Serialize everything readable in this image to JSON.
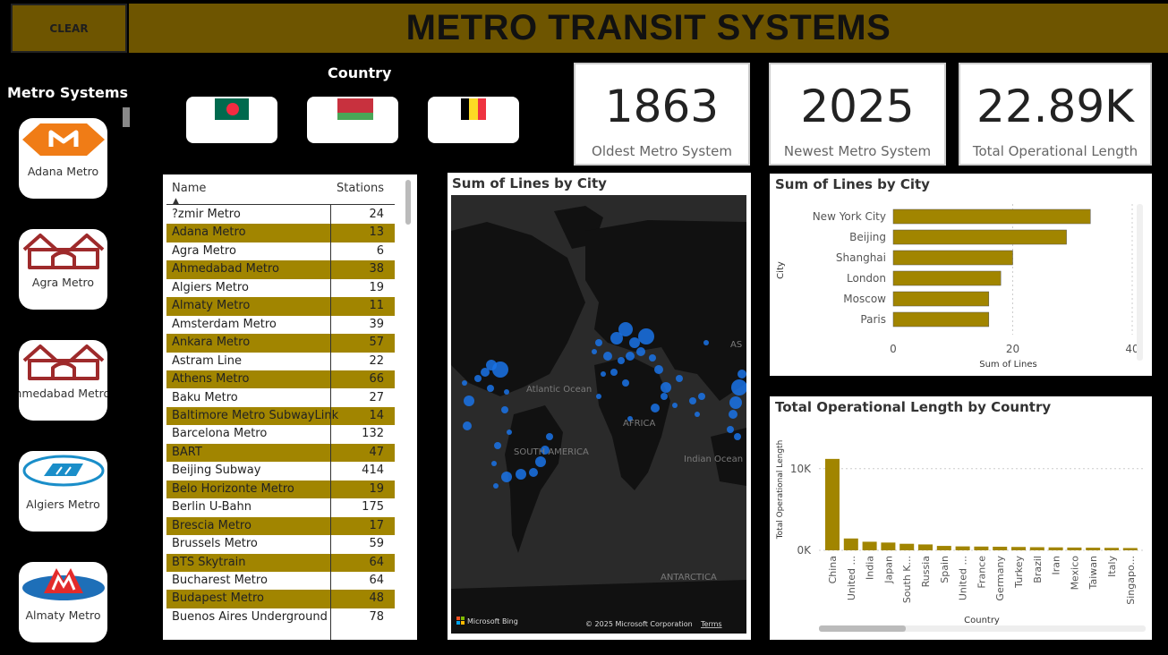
{
  "header": {
    "clear_label": "CLEAR",
    "title": "METRO TRANSIT SYSTEMS"
  },
  "sidebar": {
    "title": "Metro Systems",
    "items": [
      {
        "label": "Adana Metro",
        "icon": "adana-metro-logo-icon"
      },
      {
        "label": "Agra Metro",
        "icon": "agra-metro-logo-icon"
      },
      {
        "label": "Ahmedabad Metro",
        "icon": "ahmedabad-metro-logo-icon"
      },
      {
        "label": "Algiers Metro",
        "icon": "algiers-metro-logo-icon"
      },
      {
        "label": "Almaty Metro",
        "icon": "almaty-metro-logo-icon"
      }
    ]
  },
  "country_filter": {
    "title": "Country",
    "flags": [
      {
        "icon": "bangladesh-flag-icon"
      },
      {
        "icon": "belarus-flag-icon"
      },
      {
        "icon": "belgium-flag-icon"
      }
    ]
  },
  "kpis": [
    {
      "value": "1863",
      "caption": "Oldest Metro System"
    },
    {
      "value": "2025",
      "caption": "Newest Metro System"
    },
    {
      "value": "22.89K",
      "caption": "Total Operational Length"
    }
  ],
  "table": {
    "headers": {
      "name": "Name",
      "stations": "Stations"
    },
    "rows": [
      {
        "name": "?zmir Metro",
        "stations": "24"
      },
      {
        "name": "Adana Metro",
        "stations": "13"
      },
      {
        "name": "Agra Metro",
        "stations": "6"
      },
      {
        "name": "Ahmedabad Metro",
        "stations": "38"
      },
      {
        "name": "Algiers Metro",
        "stations": "19"
      },
      {
        "name": "Almaty Metro",
        "stations": "11"
      },
      {
        "name": "Amsterdam Metro",
        "stations": "39"
      },
      {
        "name": "Ankara Metro",
        "stations": "57"
      },
      {
        "name": "Astram Line",
        "stations": "22"
      },
      {
        "name": "Athens Metro",
        "stations": "66"
      },
      {
        "name": "Baku Metro",
        "stations": "27"
      },
      {
        "name": "Baltimore Metro SubwayLink",
        "stations": "14"
      },
      {
        "name": "Barcelona Metro",
        "stations": "132"
      },
      {
        "name": "BART",
        "stations": "47"
      },
      {
        "name": "Beijing Subway",
        "stations": "414"
      },
      {
        "name": "Belo Horizonte Metro",
        "stations": "19"
      },
      {
        "name": "Berlin U-Bahn",
        "stations": "175"
      },
      {
        "name": "Brescia Metro",
        "stations": "17"
      },
      {
        "name": "Brussels Metro",
        "stations": "59"
      },
      {
        "name": "BTS Skytrain",
        "stations": "64"
      },
      {
        "name": "Bucharest Metro",
        "stations": "64"
      },
      {
        "name": "Budapest Metro",
        "stations": "48"
      },
      {
        "name": "Buenos Aires Underground",
        "stations": "78"
      }
    ]
  },
  "map": {
    "title": "Sum of Lines by City",
    "labels": {
      "atlantic": "Atlantic Ocean",
      "africa": "AFRICA",
      "south_america": "SOUTH AMERICA",
      "indian": "Indian Ocean",
      "antarctica": "ANTARCTICA",
      "asia": "AS"
    },
    "attribution": {
      "bing": "Microsoft Bing",
      "copyright": "© 2025 Microsoft Corporation",
      "terms": "Terms"
    },
    "colors": {
      "bubble": "#1a73e8",
      "land": "#111111",
      "water": "#2a2a2a"
    }
  },
  "chart_data": [
    {
      "type": "bar",
      "orientation": "horizontal",
      "title": "Sum of Lines by City",
      "categories": [
        "New York City",
        "Beijing",
        "Shanghai",
        "London",
        "Moscow",
        "Paris"
      ],
      "values": [
        33,
        29,
        20,
        18,
        16,
        16
      ],
      "xlabel": "Sum of Lines",
      "ylabel": "City",
      "xlim": [
        0,
        40
      ],
      "xticks": [
        "0",
        "20",
        "40"
      ],
      "grid": true,
      "color": "#a18500"
    },
    {
      "type": "bar",
      "title": "Total Operational Length by Country",
      "categories": [
        "China",
        "United ...",
        "India",
        "Japan",
        "South K...",
        "Russia",
        "Spain",
        "United ...",
        "France",
        "Germany",
        "Turkey",
        "Brazil",
        "Iran",
        "Mexico",
        "Taiwan",
        "Italy",
        "Singapo..."
      ],
      "values": [
        11200,
        1450,
        1050,
        950,
        800,
        720,
        540,
        480,
        460,
        440,
        410,
        380,
        360,
        340,
        320,
        300,
        280
      ],
      "xlabel": "Country",
      "ylabel": "Total Operational Length",
      "ylim": [
        0,
        12500
      ],
      "yticks": [
        {
          "value": 0,
          "label": "0K"
        },
        {
          "value": 10000,
          "label": "10K"
        }
      ],
      "grid": true,
      "color": "#a18500"
    }
  ]
}
